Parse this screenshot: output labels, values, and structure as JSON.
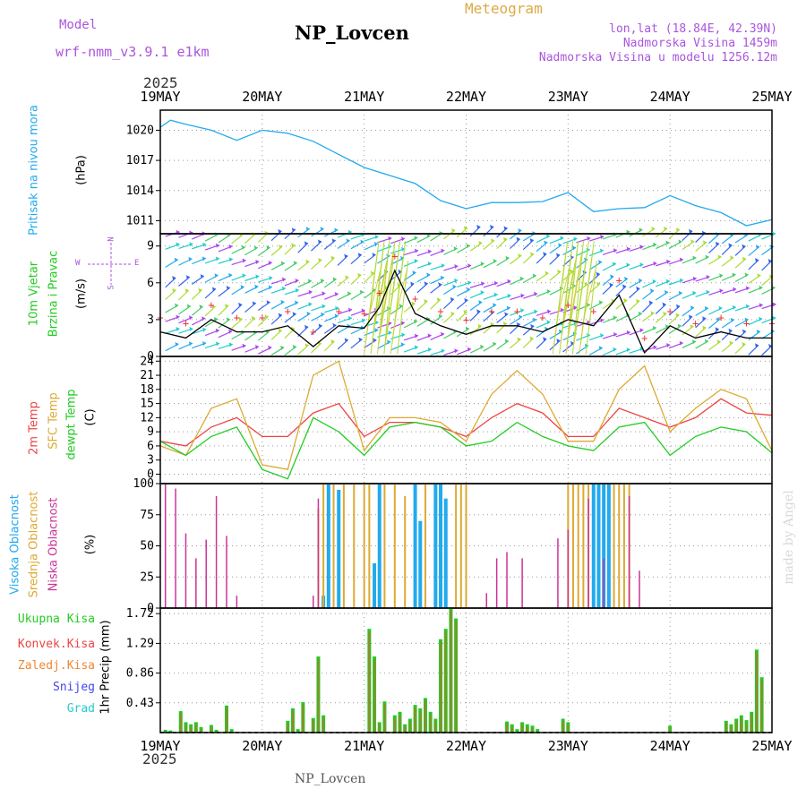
{
  "header": {
    "model_label": "Model",
    "model_name": "wrf-nmm_v3.9.1 e1km",
    "title": "NP_Lovcen",
    "meteogram_label": "Meteogram",
    "lonlat": "lon,lat (18.84E, 42.39N)",
    "elevation": "Nadmorska Visina 1459m",
    "model_elevation": "Nadmorska Visina u modelu 1256.12m",
    "year_top": "2025",
    "year_bottom": "2025",
    "footer_station": "NP_Lovcen",
    "credit": "made by Angel"
  },
  "colors": {
    "pressure": "#22aaee",
    "wind_text": "#22cc22",
    "t2m": "#ee4444",
    "tsfc": "#ddaa33",
    "dewp": "#22cc22",
    "cloud_high": "#22aaee",
    "cloud_mid": "#ddaa33",
    "cloud_low": "#cc3399",
    "precip_total": "#22cc22",
    "precip_conv": "#ee4444",
    "precip_frz": "#ee8833",
    "precip_snow": "#4444ee",
    "precip_hail": "#22cccc",
    "header_purple": "#aa55dd",
    "header_orange": "#ddaa44"
  },
  "labels": {
    "pressure": [
      "Pritisak na nivou mora",
      "(hPa)"
    ],
    "wind": [
      "10m Vjetar",
      "Brzina i Pravac",
      "(m/s)"
    ],
    "compass": [
      "W",
      "E",
      "N",
      "S"
    ],
    "temp": [
      "2m Temp",
      "SFC Temp",
      "dewpt Temp",
      "(C)"
    ],
    "cloud": [
      "Visoka Oblacnost",
      "Srednja Oblacnost",
      "Niska Oblacnost",
      "(%)"
    ],
    "precip_legend": [
      "Ukupna Kisa",
      "Konvek.Kisa",
      "Zaledj.Kisa",
      "Snijeg",
      "Grad"
    ],
    "precip_axis": "1hr Precip (mm)"
  },
  "chart_data": [
    {
      "type": "line",
      "panel": "pressure",
      "x_categories": [
        "19MAY",
        "20MAY",
        "21MAY",
        "22MAY",
        "23MAY",
        "24MAY",
        "25MAY"
      ],
      "yticks": [
        1011,
        1014,
        1017,
        1020
      ],
      "ylim": [
        1009.7,
        1022
      ],
      "ylabel": "(hPa)",
      "series": [
        {
          "name": "Pritisak na nivou mora",
          "x": [
            0,
            0.1,
            0.25,
            0.5,
            0.75,
            1.0,
            1.25,
            1.5,
            1.75,
            2.0,
            2.25,
            2.5,
            2.75,
            3.0,
            3.25,
            3.5,
            3.75,
            4.0,
            4.25,
            4.5,
            4.75,
            5.0,
            5.25,
            5.5,
            5.75,
            6.0
          ],
          "values": [
            1020.3,
            1021.0,
            1020.6,
            1020.0,
            1019.0,
            1020.0,
            1019.7,
            1018.9,
            1017.6,
            1016.3,
            1015.5,
            1014.7,
            1013.0,
            1012.2,
            1012.8,
            1012.8,
            1012.9,
            1013.8,
            1011.9,
            1012.2,
            1012.3,
            1013.5,
            1012.5,
            1011.8,
            1010.5,
            1011.1
          ]
        }
      ]
    },
    {
      "type": "line",
      "panel": "wind",
      "x_categories": [
        "19MAY",
        "20MAY",
        "21MAY",
        "22MAY",
        "23MAY",
        "24MAY",
        "25MAY"
      ],
      "yticks": [
        0,
        3,
        6,
        9
      ],
      "ylim": [
        0,
        10
      ],
      "ylabel": "(m/s)",
      "series": [
        {
          "name": "10m Vjetar",
          "x": [
            0,
            0.25,
            0.5,
            0.75,
            1.0,
            1.25,
            1.5,
            1.75,
            2.0,
            2.15,
            2.3,
            2.5,
            2.75,
            3.0,
            3.25,
            3.5,
            3.75,
            4.0,
            4.25,
            4.5,
            4.75,
            5.0,
            5.25,
            5.5,
            5.75,
            6.0
          ],
          "values": [
            2.0,
            1.5,
            3.0,
            2.0,
            2.0,
            2.5,
            0.8,
            2.5,
            2.3,
            4.0,
            7.0,
            3.5,
            2.5,
            1.8,
            2.5,
            2.5,
            2.0,
            3.0,
            2.5,
            5.0,
            0.3,
            2.5,
            1.5,
            2.0,
            1.5,
            1.5
          ]
        }
      ]
    },
    {
      "type": "line",
      "panel": "temperature",
      "x_categories": [
        "19MAY",
        "20MAY",
        "21MAY",
        "22MAY",
        "23MAY",
        "24MAY",
        "25MAY"
      ],
      "yticks": [
        0,
        3,
        6,
        9,
        12,
        15,
        18,
        21,
        24
      ],
      "ylim": [
        -2,
        25
      ],
      "ylabel": "(C)",
      "x": [
        0,
        0.25,
        0.5,
        0.75,
        1.0,
        1.25,
        1.5,
        1.75,
        2.0,
        2.25,
        2.5,
        2.75,
        3.0,
        3.25,
        3.5,
        3.75,
        4.0,
        4.25,
        4.5,
        4.75,
        5.0,
        5.25,
        5.5,
        5.75,
        6.0
      ],
      "series": [
        {
          "name": "2m Temp",
          "values": [
            7,
            6,
            10,
            12,
            8,
            8,
            13,
            15,
            8,
            11,
            11,
            10,
            8,
            12,
            15,
            13,
            8,
            8,
            14,
            12,
            10,
            12,
            16,
            13,
            12.5
          ]
        },
        {
          "name": "SFC Temp",
          "values": [
            6,
            4,
            14,
            16,
            2,
            1,
            21,
            24,
            5,
            12,
            12,
            11,
            7,
            17,
            22,
            17,
            7,
            7,
            18,
            23,
            9,
            14,
            18,
            16,
            5
          ]
        },
        {
          "name": "dewpt Temp",
          "values": [
            7,
            4,
            8,
            10,
            1,
            -1,
            12,
            9,
            4,
            10,
            11,
            10,
            6,
            7,
            11,
            8,
            6,
            5,
            10,
            11,
            4,
            8,
            10,
            9,
            4.5
          ]
        }
      ]
    },
    {
      "type": "bar",
      "panel": "cloud",
      "x_categories": [
        "19MAY",
        "20MAY",
        "21MAY",
        "22MAY",
        "23MAY",
        "24MAY",
        "25MAY"
      ],
      "yticks": [
        0,
        25,
        50,
        75,
        100
      ],
      "ylim": [
        0,
        100
      ],
      "ylabel": "(%)",
      "series": [
        {
          "name": "Visoka Oblacnost",
          "x": [
            1.6,
            1.65,
            1.75,
            2.1,
            2.15,
            2.5,
            2.55,
            2.7,
            2.75,
            2.8,
            4.25,
            4.3,
            4.35,
            4.4
          ],
          "values": [
            10,
            100,
            95,
            36,
            100,
            100,
            70,
            100,
            100,
            88,
            100,
            100,
            100,
            100
          ]
        },
        {
          "name": "Srednja Oblacnost",
          "x": [
            1.55,
            1.6,
            1.7,
            1.8,
            1.9,
            2.0,
            2.05,
            2.2,
            2.3,
            2.4,
            2.6,
            2.9,
            2.95,
            3.0,
            4.0,
            4.05,
            4.1,
            4.15,
            4.2,
            4.45,
            4.5,
            4.55,
            4.6
          ],
          "values": [
            80,
            100,
            100,
            100,
            100,
            100,
            100,
            100,
            100,
            90,
            100,
            100,
            100,
            100,
            100,
            100,
            100,
            100,
            100,
            100,
            100,
            100,
            100
          ]
        },
        {
          "name": "Niska Oblacnost",
          "x": [
            0.05,
            0.15,
            0.25,
            0.35,
            0.45,
            0.55,
            0.65,
            0.75,
            1.5,
            1.55,
            3.2,
            3.3,
            3.4,
            3.55,
            3.9,
            4.0,
            4.2,
            4.35,
            4.6,
            4.7
          ],
          "values": [
            100,
            96,
            60,
            40,
            55,
            90,
            58,
            10,
            10,
            88,
            12,
            40,
            45,
            40,
            56,
            63,
            88,
            40,
            90,
            30
          ]
        }
      ]
    },
    {
      "type": "bar",
      "panel": "precipitation",
      "x_categories": [
        "19MAY",
        "20MAY",
        "21MAY",
        "22MAY",
        "23MAY",
        "24MAY",
        "25MAY"
      ],
      "yticks": [
        0.43,
        0.86,
        1.29,
        1.72
      ],
      "ylim": [
        0,
        1.8
      ],
      "ylabel": "1hr Precip (mm)",
      "series": [
        {
          "name": "Ukupna Kisa",
          "x": [
            0.05,
            0.1,
            0.2,
            0.25,
            0.3,
            0.35,
            0.4,
            0.5,
            0.55,
            0.65,
            0.7,
            1.25,
            1.3,
            1.35,
            1.4,
            1.5,
            1.55,
            1.6,
            2.05,
            2.1,
            2.15,
            2.2,
            2.3,
            2.35,
            2.4,
            2.45,
            2.5,
            2.55,
            2.6,
            2.65,
            2.7,
            2.75,
            2.8,
            2.85,
            2.9,
            3.4,
            3.45,
            3.5,
            3.55,
            3.6,
            3.65,
            3.7,
            3.95,
            4.0,
            5.0,
            5.55,
            5.6,
            5.65,
            5.7,
            5.75,
            5.8,
            5.85,
            5.9
          ],
          "values": [
            0.04,
            0.03,
            0.31,
            0.15,
            0.12,
            0.15,
            0.08,
            0.11,
            0.04,
            0.39,
            0.05,
            0.17,
            0.35,
            0.05,
            0.44,
            0.21,
            1.1,
            0.25,
            1.5,
            1.1,
            0.15,
            0.45,
            0.25,
            0.3,
            0.12,
            0.2,
            0.4,
            0.35,
            0.5,
            0.3,
            0.2,
            1.35,
            1.5,
            1.8,
            1.65,
            0.16,
            0.12,
            0.05,
            0.15,
            0.12,
            0.1,
            0.05,
            0.2,
            0.15,
            0.1,
            0.17,
            0.12,
            0.2,
            0.25,
            0.18,
            0.3,
            1.2,
            0.8
          ]
        }
      ]
    }
  ]
}
